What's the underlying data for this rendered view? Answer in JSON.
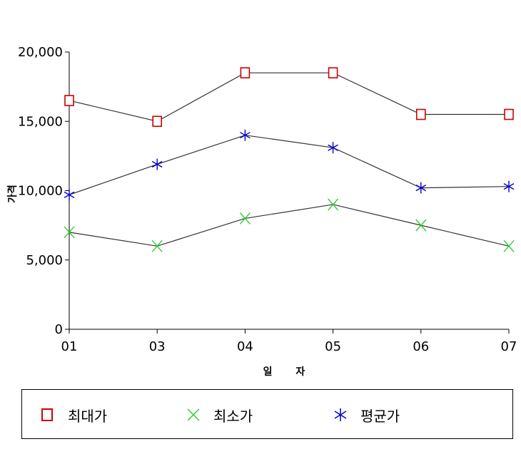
{
  "chart_data": {
    "type": "line",
    "categories": [
      "01",
      "03",
      "04",
      "05",
      "06",
      "07"
    ],
    "series": [
      {
        "name": "최대가",
        "values": [
          16500,
          15000,
          18500,
          18500,
          15500,
          15500
        ],
        "color": "#cc0000",
        "marker": "square"
      },
      {
        "name": "최소가",
        "values": [
          7000,
          6000,
          8000,
          9000,
          7500,
          6000
        ],
        "color": "#33cc33",
        "marker": "x"
      },
      {
        "name": "평균가",
        "values": [
          9700,
          11900,
          14000,
          13100,
          10200,
          10300
        ],
        "color": "#0000cc",
        "marker": "asterisk"
      }
    ],
    "yticks": [
      "0",
      "5,000",
      "10,000",
      "15,000",
      "20,000"
    ],
    "ylim": [
      0,
      20000
    ],
    "xlabel": "일 자",
    "ylabel": "가격",
    "legend_position": "bottom",
    "grid": false,
    "line_color": "#333333"
  }
}
